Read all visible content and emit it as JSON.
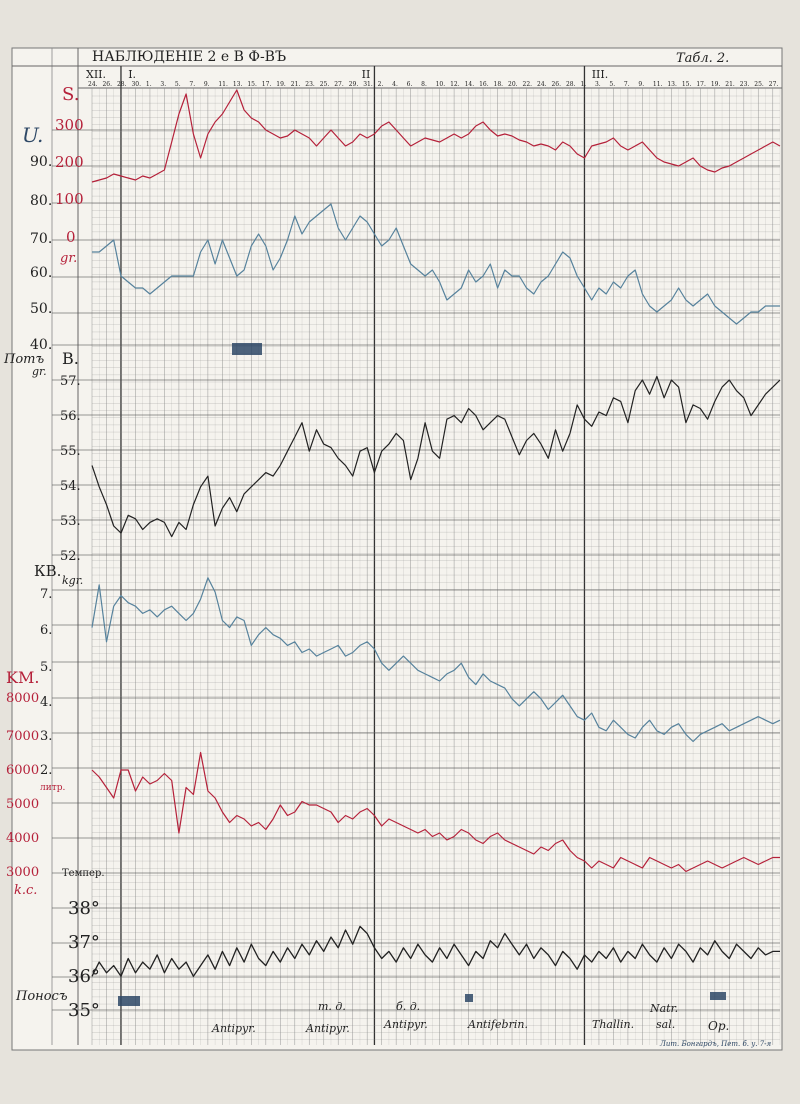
{
  "header": {
    "title": "НАБЛЮДЕНІЕ 2 е   В  Ф-ВЪ",
    "table_no": "Табл. 2."
  },
  "months": [
    "XII.",
    "I.",
    "II",
    "III."
  ],
  "day_labels": [
    "24.",
    "26.",
    "28.",
    "30.",
    "1.",
    "3.",
    "5.",
    "7.",
    "9.",
    "11.",
    "13.",
    "15.",
    "17.",
    "19.",
    "21.",
    "23.",
    "25.",
    "27.",
    "29.",
    "31.",
    "2.",
    "4.",
    "6.",
    "8.",
    "10.",
    "12.",
    "14.",
    "16.",
    "18.",
    "20.",
    "22.",
    "24.",
    "26.",
    "28.",
    "1.",
    "3.",
    "5.",
    "7.",
    "9.",
    "11.",
    "13.",
    "15.",
    "17.",
    "19.",
    "21.",
    "23.",
    "25.",
    "27."
  ],
  "left_scales": {
    "S_label": "S.",
    "U_label": "U.",
    "U_ticks": [
      "90.",
      "80.",
      "70.",
      "60.",
      "50.",
      "40."
    ],
    "S_ticks": [
      "300",
      "200",
      "100",
      "0"
    ],
    "gr_label": "gr.",
    "pot_label": "Потъ",
    "pot_unit": "gr.",
    "B_label": "B.",
    "B_ticks": [
      "57.",
      "56.",
      "55.",
      "54.",
      "53.",
      "52."
    ],
    "kgr_label": "kgr.",
    "KB_label": "КB.",
    "KB_ticks": [
      "7.",
      "6.",
      "5.",
      "4.",
      "3.",
      "2."
    ],
    "litr_label": "литр.",
    "KM_label": "KM.",
    "KM_ticks": [
      "8000",
      "7000",
      "6000",
      "5000",
      "4000",
      "3000"
    ],
    "kc_label": "k.c.",
    "temp_label": "Темпер.",
    "temp_ticks": [
      "38°",
      "37°",
      "36°",
      "35°"
    ],
    "ponos_label": "Поносъ"
  },
  "annotations": [
    {
      "text": "Antipyr."
    },
    {
      "text": "т. д."
    },
    {
      "text": "Antipyr."
    },
    {
      "text": "б. д."
    },
    {
      "text": "Antipyr."
    },
    {
      "text": "Antifebrin."
    },
    {
      "text": "Thallin."
    },
    {
      "text": "Natr."
    },
    {
      "text": "sal."
    },
    {
      "text": "Op."
    }
  ],
  "imprint": "Лит. Бонгардъ, Пет. б. у. 7-я",
  "colors": {
    "paper": "#f5f3ee",
    "grid": "#8a8a8a",
    "red": "#b5213a",
    "blue": "#56829c",
    "black": "#222222",
    "stain": "#2e4866"
  },
  "chart_data": {
    "type": "line",
    "x_start_day": 24,
    "x": [
      0,
      1,
      2,
      3,
      4,
      5,
      6,
      7,
      8,
      9,
      10,
      11,
      12,
      13,
      14,
      15,
      16,
      17,
      18,
      19,
      20,
      21,
      22,
      23,
      24,
      25,
      26,
      27,
      28,
      29,
      30,
      31,
      32,
      33,
      34,
      35,
      36,
      37,
      38,
      39,
      40,
      41,
      42,
      43,
      44,
      45,
      46,
      47,
      48,
      49,
      50,
      51,
      52,
      53,
      54,
      55,
      56,
      57,
      58,
      59,
      60,
      61,
      62,
      63,
      64,
      65,
      66,
      67,
      68,
      69,
      70,
      71,
      72,
      73,
      74,
      75,
      76,
      77,
      78,
      79,
      80,
      81,
      82,
      83,
      84,
      85,
      86,
      87,
      88,
      89,
      90,
      91,
      92,
      93,
      94,
      95
    ],
    "series": [
      {
        "name": "S.",
        "unit": "gr.",
        "color": "red",
        "values": [
          60,
          65,
          70,
          80,
          75,
          70,
          65,
          75,
          70,
          80,
          90,
          160,
          230,
          280,
          180,
          120,
          180,
          210,
          230,
          260,
          290,
          240,
          220,
          210,
          190,
          180,
          170,
          175,
          190,
          180,
          170,
          150,
          170,
          190,
          170,
          150,
          160,
          180,
          170,
          180,
          200,
          210,
          190,
          170,
          150,
          160,
          170,
          165,
          160,
          170,
          180,
          170,
          180,
          200,
          210,
          190,
          175,
          180,
          175,
          165,
          160,
          150,
          155,
          150,
          140,
          160,
          150,
          130,
          120,
          150,
          155,
          160,
          170,
          150,
          140,
          150,
          160,
          140,
          120,
          110,
          105,
          100,
          110,
          120,
          100,
          90,
          85,
          95,
          100,
          110,
          120,
          130,
          140,
          150,
          160,
          150
        ]
      },
      {
        "name": "U.",
        "unit": "",
        "color": "blue",
        "values": [
          56,
          56,
          57,
          58,
          52,
          51,
          50,
          50,
          49,
          50,
          51,
          52,
          52,
          52,
          52,
          56,
          58,
          54,
          58,
          55,
          52,
          53,
          57,
          59,
          57,
          53,
          55,
          58,
          62,
          59,
          61,
          62,
          63,
          64,
          60,
          58,
          60,
          62,
          61,
          59,
          57,
          58,
          60,
          57,
          54,
          53,
          52,
          53,
          51,
          48,
          49,
          50,
          53,
          51,
          52,
          54,
          50,
          53,
          52,
          52,
          50,
          49,
          51,
          52,
          54,
          56,
          55,
          52,
          50,
          48,
          50,
          49,
          51,
          50,
          52,
          53,
          49,
          47,
          46,
          47,
          48,
          50,
          48,
          47,
          48,
          49,
          47,
          46,
          45,
          44,
          45,
          46,
          46,
          47,
          47,
          47
        ]
      },
      {
        "name": "B.",
        "unit": "kgr.",
        "color": "black",
        "values": [
          54.6,
          54.0,
          53.5,
          52.9,
          52.7,
          53.2,
          53.1,
          52.8,
          53.0,
          53.1,
          53.0,
          52.6,
          53.0,
          52.8,
          53.5,
          54.0,
          54.3,
          52.9,
          53.4,
          53.7,
          53.3,
          53.8,
          54.0,
          54.2,
          54.4,
          54.3,
          54.6,
          55.0,
          55.4,
          55.8,
          55.0,
          55.6,
          55.2,
          55.1,
          54.8,
          54.6,
          54.3,
          55.0,
          55.1,
          54.4,
          55.0,
          55.2,
          55.5,
          55.3,
          54.2,
          54.8,
          55.8,
          55.0,
          54.8,
          55.9,
          56.0,
          55.8,
          56.2,
          56.0,
          55.6,
          55.8,
          56.0,
          55.9,
          55.4,
          54.9,
          55.3,
          55.5,
          55.2,
          54.8,
          55.6,
          55.0,
          55.5,
          56.3,
          55.9,
          55.7,
          56.1,
          56.0,
          56.5,
          56.4,
          55.8,
          56.7,
          57.0,
          56.6,
          57.1,
          56.5,
          57.0,
          56.8,
          55.8,
          56.3,
          56.2,
          55.9,
          56.4,
          56.8,
          57.0,
          56.7,
          56.5,
          56.0,
          56.3,
          56.6,
          56.8,
          57.0
        ]
      },
      {
        "name": "КB.",
        "unit": "литр.",
        "color": "blue",
        "values": [
          6.0,
          7.2,
          5.6,
          6.6,
          6.9,
          6.7,
          6.6,
          6.4,
          6.5,
          6.3,
          6.5,
          6.6,
          6.4,
          6.2,
          6.4,
          6.8,
          7.4,
          7.0,
          6.2,
          6.0,
          6.3,
          6.2,
          5.5,
          5.8,
          6.0,
          5.8,
          5.7,
          5.5,
          5.6,
          5.3,
          5.4,
          5.2,
          5.3,
          5.4,
          5.5,
          5.2,
          5.3,
          5.5,
          5.6,
          5.4,
          5.0,
          4.8,
          5.0,
          5.2,
          5.0,
          4.8,
          4.7,
          4.6,
          4.5,
          4.7,
          4.8,
          5.0,
          4.6,
          4.4,
          4.7,
          4.5,
          4.4,
          4.3,
          4.0,
          3.8,
          4.0,
          4.2,
          4.0,
          3.7,
          3.9,
          4.1,
          3.8,
          3.5,
          3.4,
          3.6,
          3.2,
          3.1,
          3.4,
          3.2,
          3.0,
          2.9,
          3.2,
          3.4,
          3.1,
          3.0,
          3.2,
          3.3,
          3.0,
          2.8,
          3.0,
          3.1,
          3.2,
          3.3,
          3.1,
          3.2,
          3.3,
          3.4,
          3.5,
          3.4,
          3.3,
          3.4
        ]
      },
      {
        "name": "KM.",
        "unit": "k.c.",
        "color": "red",
        "values": [
          6000,
          5800,
          5500,
          5200,
          6000,
          6000,
          5400,
          5800,
          5600,
          5700,
          5900,
          5700,
          4200,
          5500,
          5300,
          6500,
          5400,
          5200,
          4800,
          4500,
          4700,
          4600,
          4400,
          4500,
          4300,
          4600,
          5000,
          4700,
          4800,
          5100,
          5000,
          5000,
          4900,
          4800,
          4500,
          4700,
          4600,
          4800,
          4900,
          4700,
          4400,
          4600,
          4500,
          4400,
          4300,
          4200,
          4300,
          4100,
          4200,
          4000,
          4100,
          4300,
          4200,
          4000,
          3900,
          4100,
          4200,
          4000,
          3900,
          3800,
          3700,
          3600,
          3800,
          3700,
          3900,
          4000,
          3700,
          3500,
          3400,
          3200,
          3400,
          3300,
          3200,
          3500,
          3400,
          3300,
          3200,
          3500,
          3400,
          3300,
          3200,
          3300,
          3100,
          3200,
          3300,
          3400,
          3300,
          3200,
          3300,
          3400,
          3500,
          3400,
          3300,
          3400,
          3500,
          3500
        ]
      },
      {
        "name": "Темпер.",
        "unit": "°",
        "color": "black",
        "values": [
          36.0,
          36.4,
          36.1,
          36.3,
          36.0,
          36.5,
          36.1,
          36.4,
          36.2,
          36.6,
          36.1,
          36.5,
          36.2,
          36.4,
          36.0,
          36.3,
          36.6,
          36.2,
          36.7,
          36.3,
          36.8,
          36.4,
          36.9,
          36.5,
          36.3,
          36.7,
          36.4,
          36.8,
          36.5,
          36.9,
          36.6,
          37.0,
          36.7,
          37.1,
          36.8,
          37.3,
          36.9,
          37.4,
          37.2,
          36.8,
          36.5,
          36.7,
          36.4,
          36.8,
          36.5,
          36.9,
          36.6,
          36.4,
          36.8,
          36.5,
          36.9,
          36.6,
          36.3,
          36.7,
          36.5,
          37.0,
          36.8,
          37.2,
          36.9,
          36.6,
          36.9,
          36.5,
          36.8,
          36.6,
          36.3,
          36.7,
          36.5,
          36.2,
          36.6,
          36.4,
          36.7,
          36.5,
          36.8,
          36.4,
          36.7,
          36.5,
          36.9,
          36.6,
          36.4,
          36.8,
          36.5,
          36.9,
          36.7,
          36.4,
          36.8,
          36.6,
          37.0,
          36.7,
          36.5,
          36.9,
          36.7,
          36.5,
          36.8,
          36.6,
          36.7,
          36.7
        ]
      }
    ],
    "ylim": {
      "S.": [
        -100,
        300
      ],
      "U.": [
        40,
        70
      ],
      "B.": [
        52,
        57
      ],
      "КB.": [
        2,
        7
      ],
      "KM.": [
        3000,
        8000
      ],
      "Темпер.": [
        35,
        38
      ]
    }
  }
}
